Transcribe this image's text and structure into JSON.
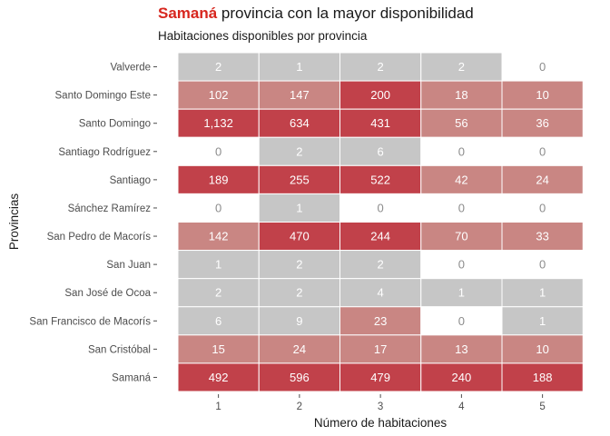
{
  "title": {
    "highlight": "Samaná",
    "rest": " provincia con la mayor disponibilidad"
  },
  "subtitle": "Habitaciones disponibles por provincia",
  "colors": {
    "title_highlight": "#d7261e",
    "high": "#c1414a",
    "mid": "#c98683",
    "low": "#c6c6c6",
    "zero": "#ffffff",
    "text_light": "#ffffff",
    "text_muted": "#8c8c8c"
  },
  "chart_data": {
    "type": "heatmap",
    "title": "Samaná provincia con la mayor disponibilidad",
    "subtitle": "Habitaciones disponibles por provincia",
    "xlabel": "Número de habitaciones",
    "ylabel": "Provincias",
    "x": [
      "1",
      "2",
      "3",
      "4",
      "5"
    ],
    "rows": [
      "Valverde",
      "Santo Domingo Este",
      "Santo Domingo",
      "Santiago Rodríguez",
      "Santiago",
      "Sánchez Ramírez",
      "San Pedro de Macorís",
      "San Juan",
      "San José de Ocoa",
      "San Francisco de Macorís",
      "San Cristóbal",
      "Samaná"
    ],
    "values": [
      [
        2,
        1,
        2,
        2,
        0
      ],
      [
        102,
        147,
        200,
        18,
        10
      ],
      [
        1132,
        634,
        431,
        56,
        36
      ],
      [
        0,
        2,
        6,
        0,
        0
      ],
      [
        189,
        255,
        522,
        42,
        24
      ],
      [
        0,
        1,
        0,
        0,
        0
      ],
      [
        142,
        470,
        244,
        70,
        33
      ],
      [
        1,
        2,
        2,
        0,
        0
      ],
      [
        2,
        2,
        4,
        1,
        1
      ],
      [
        6,
        9,
        23,
        0,
        1
      ],
      [
        15,
        24,
        17,
        13,
        10
      ],
      [
        492,
        596,
        479,
        240,
        188
      ]
    ],
    "labels": [
      [
        "2",
        "1",
        "2",
        "2",
        "0"
      ],
      [
        "102",
        "147",
        "200",
        "18",
        "10"
      ],
      [
        "1,132",
        "634",
        "431",
        "56",
        "36"
      ],
      [
        "0",
        "2",
        "6",
        "0",
        "0"
      ],
      [
        "189",
        "255",
        "522",
        "42",
        "24"
      ],
      [
        "0",
        "1",
        "0",
        "0",
        "0"
      ],
      [
        "142",
        "470",
        "244",
        "70",
        "33"
      ],
      [
        "1",
        "2",
        "2",
        "0",
        "0"
      ],
      [
        "2",
        "2",
        "4",
        "1",
        "1"
      ],
      [
        "6",
        "9",
        "23",
        "0",
        "1"
      ],
      [
        "15",
        "24",
        "17",
        "13",
        "10"
      ],
      [
        "492",
        "596",
        "479",
        "240",
        "188"
      ]
    ],
    "grid": false,
    "legend": "none"
  }
}
